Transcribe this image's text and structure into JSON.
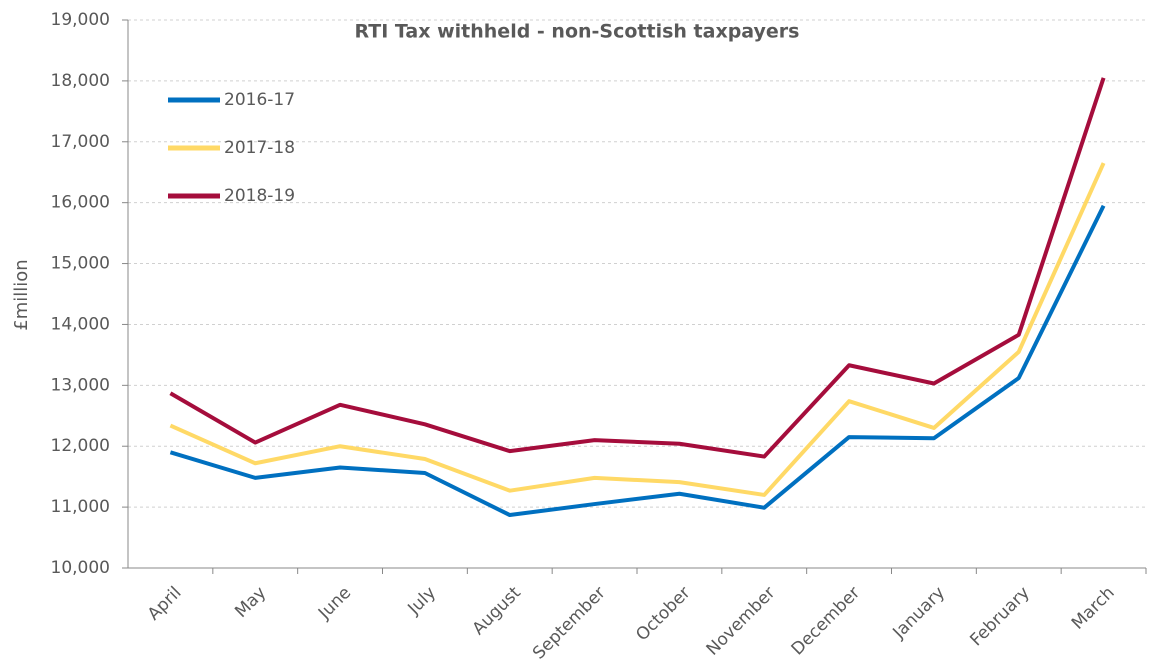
{
  "chart_data": {
    "type": "line",
    "title": "RTI Tax withheld - non-Scottish taxpayers",
    "y_label": "£million",
    "categories": [
      "April",
      "May",
      "June",
      "July",
      "August",
      "September",
      "October",
      "November",
      "December",
      "January",
      "February",
      "March"
    ],
    "series": [
      {
        "name": "2016-17",
        "color": "#0070c0",
        "values": [
          11900,
          11480,
          11650,
          11560,
          10870,
          11050,
          11220,
          10990,
          12150,
          12130,
          13120,
          15950
        ]
      },
      {
        "name": "2017-18",
        "color": "#ffd966",
        "values": [
          12340,
          11720,
          12000,
          11790,
          11270,
          11480,
          11410,
          11200,
          12740,
          12300,
          13550,
          16650
        ]
      },
      {
        "name": "2018-19",
        "color": "#a50d3c",
        "values": [
          12870,
          12060,
          12680,
          12360,
          11920,
          12100,
          12040,
          11830,
          13330,
          13030,
          13830,
          18050
        ]
      }
    ],
    "ylim": [
      10000,
      19000
    ],
    "yticks": [
      {
        "value": 10000,
        "label": "10,000"
      },
      {
        "value": 11000,
        "label": "11,000"
      },
      {
        "value": 12000,
        "label": "12,000"
      },
      {
        "value": 13000,
        "label": "13,000"
      },
      {
        "value": 14000,
        "label": "14,000"
      },
      {
        "value": 15000,
        "label": "15,000"
      },
      {
        "value": 16000,
        "label": "16,000"
      },
      {
        "value": 17000,
        "label": "17,000"
      },
      {
        "value": 18000,
        "label": "18,000"
      },
      {
        "value": 19000,
        "label": "19,000"
      }
    ],
    "grid": true,
    "legend": "upper left"
  }
}
